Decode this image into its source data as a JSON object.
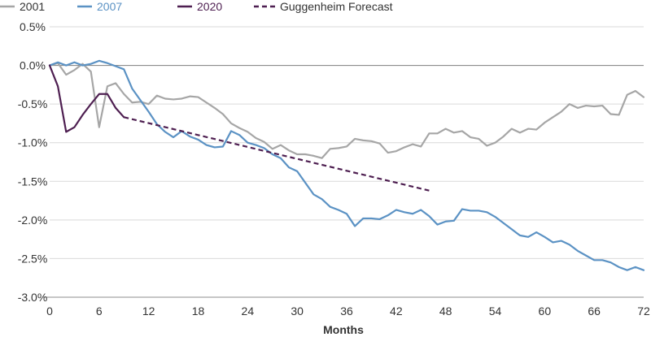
{
  "chart_data": {
    "type": "line",
    "title": "",
    "xlabel": "Months",
    "ylabel": "",
    "xlim": [
      0,
      72
    ],
    "ylim": [
      -3.0,
      0.5
    ],
    "x_ticks": [
      0,
      6,
      12,
      18,
      24,
      30,
      36,
      42,
      48,
      54,
      60,
      66,
      72
    ],
    "x_tick_labels": [
      "0",
      "6",
      "12",
      "18",
      "24",
      "30",
      "36",
      "42",
      "48",
      "54",
      "60",
      "66",
      "72"
    ],
    "y_ticks": [
      0.5,
      0.0,
      -0.5,
      -1.0,
      -1.5,
      -2.0,
      -2.5,
      -3.0
    ],
    "y_tick_labels": [
      "0.5%",
      "0.0%",
      "-0.5%",
      "-1.0%",
      "-1.5%",
      "-2.0%",
      "-2.5%",
      "-3.0%"
    ],
    "grid": true,
    "legend_position": "top-left",
    "series": [
      {
        "name": "2001",
        "color": "#a6a6a6",
        "dashed": false,
        "x": [
          0,
          1,
          2,
          3,
          4,
          5,
          6,
          7,
          8,
          9,
          10,
          11,
          12,
          13,
          14,
          15,
          16,
          17,
          18,
          19,
          20,
          21,
          22,
          23,
          24,
          25,
          26,
          27,
          28,
          29,
          30,
          31,
          32,
          33,
          34,
          35,
          36,
          37,
          38,
          39,
          40,
          41,
          42,
          43,
          44,
          45,
          46,
          47,
          48,
          49,
          50,
          51,
          52,
          53,
          54,
          55,
          56,
          57,
          58,
          59,
          60,
          61,
          62,
          63,
          64,
          65,
          66,
          67,
          68,
          69,
          70,
          71,
          72
        ],
        "values": [
          0.0,
          0.03,
          -0.12,
          -0.06,
          0.02,
          -0.08,
          -0.8,
          -0.27,
          -0.23,
          -0.37,
          -0.48,
          -0.47,
          -0.5,
          -0.39,
          -0.43,
          -0.44,
          -0.43,
          -0.4,
          -0.41,
          -0.48,
          -0.55,
          -0.63,
          -0.75,
          -0.81,
          -0.86,
          -0.94,
          -0.99,
          -1.08,
          -1.03,
          -1.1,
          -1.15,
          -1.15,
          -1.17,
          -1.2,
          -1.08,
          -1.07,
          -1.05,
          -0.95,
          -0.97,
          -0.98,
          -1.01,
          -1.13,
          -1.11,
          -1.06,
          -1.02,
          -1.05,
          -0.88,
          -0.88,
          -0.82,
          -0.87,
          -0.85,
          -0.93,
          -0.95,
          -1.04,
          -1.0,
          -0.92,
          -0.82,
          -0.87,
          -0.82,
          -0.83,
          -0.74,
          -0.67,
          -0.6,
          -0.5,
          -0.55,
          -0.52,
          -0.53,
          -0.52,
          -0.63,
          -0.64,
          -0.38,
          -0.33,
          -0.41
        ]
      },
      {
        "name": "2007",
        "color": "#5b92c4",
        "dashed": false,
        "x": [
          0,
          1,
          2,
          3,
          4,
          5,
          6,
          7,
          8,
          9,
          10,
          11,
          12,
          13,
          14,
          15,
          16,
          17,
          18,
          19,
          20,
          21,
          22,
          23,
          24,
          25,
          26,
          27,
          28,
          29,
          30,
          31,
          32,
          33,
          34,
          35,
          36,
          37,
          38,
          39,
          40,
          41,
          42,
          43,
          44,
          45,
          46,
          47,
          48,
          49,
          50,
          51,
          52,
          53,
          54,
          55,
          56,
          57,
          58,
          59,
          60,
          61,
          62,
          63,
          64,
          65,
          66,
          67,
          68,
          69,
          70,
          71,
          72
        ],
        "values": [
          0.0,
          0.04,
          0.0,
          0.04,
          0.0,
          0.02,
          0.06,
          0.03,
          -0.01,
          -0.05,
          -0.3,
          -0.45,
          -0.6,
          -0.76,
          -0.86,
          -0.93,
          -0.85,
          -0.92,
          -0.96,
          -1.03,
          -1.06,
          -1.05,
          -0.85,
          -0.9,
          -1.0,
          -1.03,
          -1.07,
          -1.15,
          -1.2,
          -1.32,
          -1.37,
          -1.52,
          -1.67,
          -1.73,
          -1.83,
          -1.87,
          -1.92,
          -2.08,
          -1.98,
          -1.98,
          -1.99,
          -1.94,
          -1.87,
          -1.9,
          -1.92,
          -1.87,
          -1.95,
          -2.06,
          -2.02,
          -2.01,
          -1.86,
          -1.88,
          -1.88,
          -1.9,
          -1.96,
          -2.04,
          -2.12,
          -2.2,
          -2.22,
          -2.16,
          -2.22,
          -2.29,
          -2.27,
          -2.32,
          -2.4,
          -2.46,
          -2.52,
          -2.52,
          -2.55,
          -2.61,
          -2.65,
          -2.61,
          -2.65
        ]
      },
      {
        "name": "2020",
        "color": "#4e1f51",
        "dashed": false,
        "x": [
          0,
          1,
          2,
          3,
          4,
          5,
          6,
          7,
          8,
          9
        ],
        "values": [
          0.0,
          -0.27,
          -0.86,
          -0.8,
          -0.64,
          -0.5,
          -0.37,
          -0.37,
          -0.55,
          -0.67
        ]
      },
      {
        "name": "Guggenheim Forecast",
        "color": "#4e1f51",
        "dashed": true,
        "x": [
          9,
          46
        ],
        "values": [
          -0.67,
          -1.62
        ]
      }
    ]
  }
}
